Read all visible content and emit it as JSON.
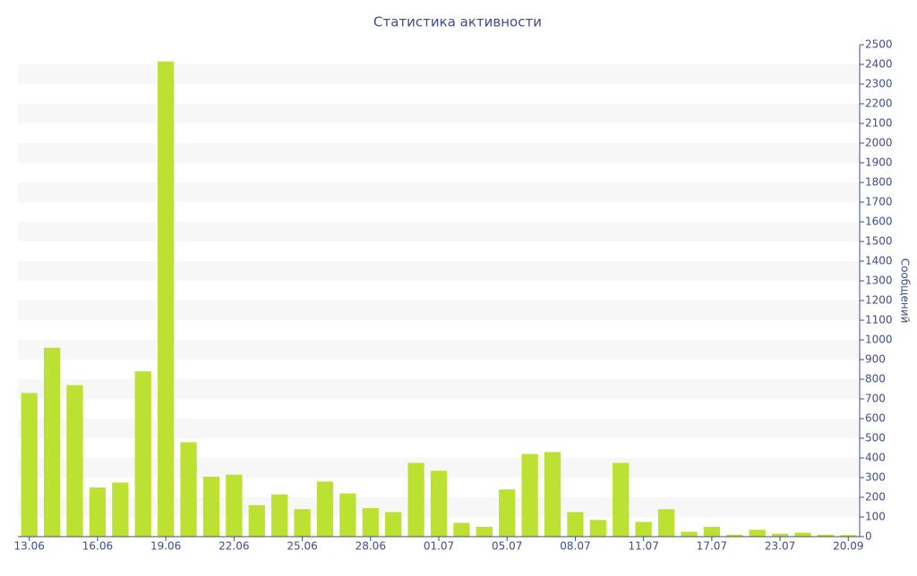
{
  "chart_data": {
    "type": "bar",
    "title": "Статистика активности",
    "y_label": "Сообщений",
    "categories": [
      "13.06",
      null,
      null,
      "16.06",
      null,
      null,
      "19.06",
      null,
      null,
      "22.06",
      null,
      null,
      "25.06",
      null,
      null,
      "28.06",
      null,
      null,
      "01.07",
      null,
      null,
      "05.07",
      null,
      null,
      "08.07",
      null,
      null,
      "11.07",
      null,
      null,
      "17.07",
      null,
      null,
      "23.07",
      null,
      null,
      "20.09"
    ],
    "values": [
      730,
      960,
      770,
      250,
      275,
      840,
      2415,
      480,
      305,
      315,
      160,
      215,
      140,
      280,
      220,
      145,
      125,
      375,
      335,
      70,
      50,
      240,
      420,
      430,
      125,
      85,
      375,
      75,
      140,
      25,
      50,
      10,
      35,
      15,
      20,
      10,
      8
    ],
    "color": "#bde132",
    "ylim": [
      0,
      2500
    ],
    "yticks": [
      0,
      100,
      200,
      300,
      400,
      500,
      600,
      700,
      800,
      900,
      1000,
      1100,
      1200,
      1300,
      1400,
      1500,
      1600,
      1700,
      1800,
      1900,
      2000,
      2100,
      2200,
      2300,
      2400,
      2500
    ],
    "y_axis_side": "right",
    "grid": "bands"
  }
}
